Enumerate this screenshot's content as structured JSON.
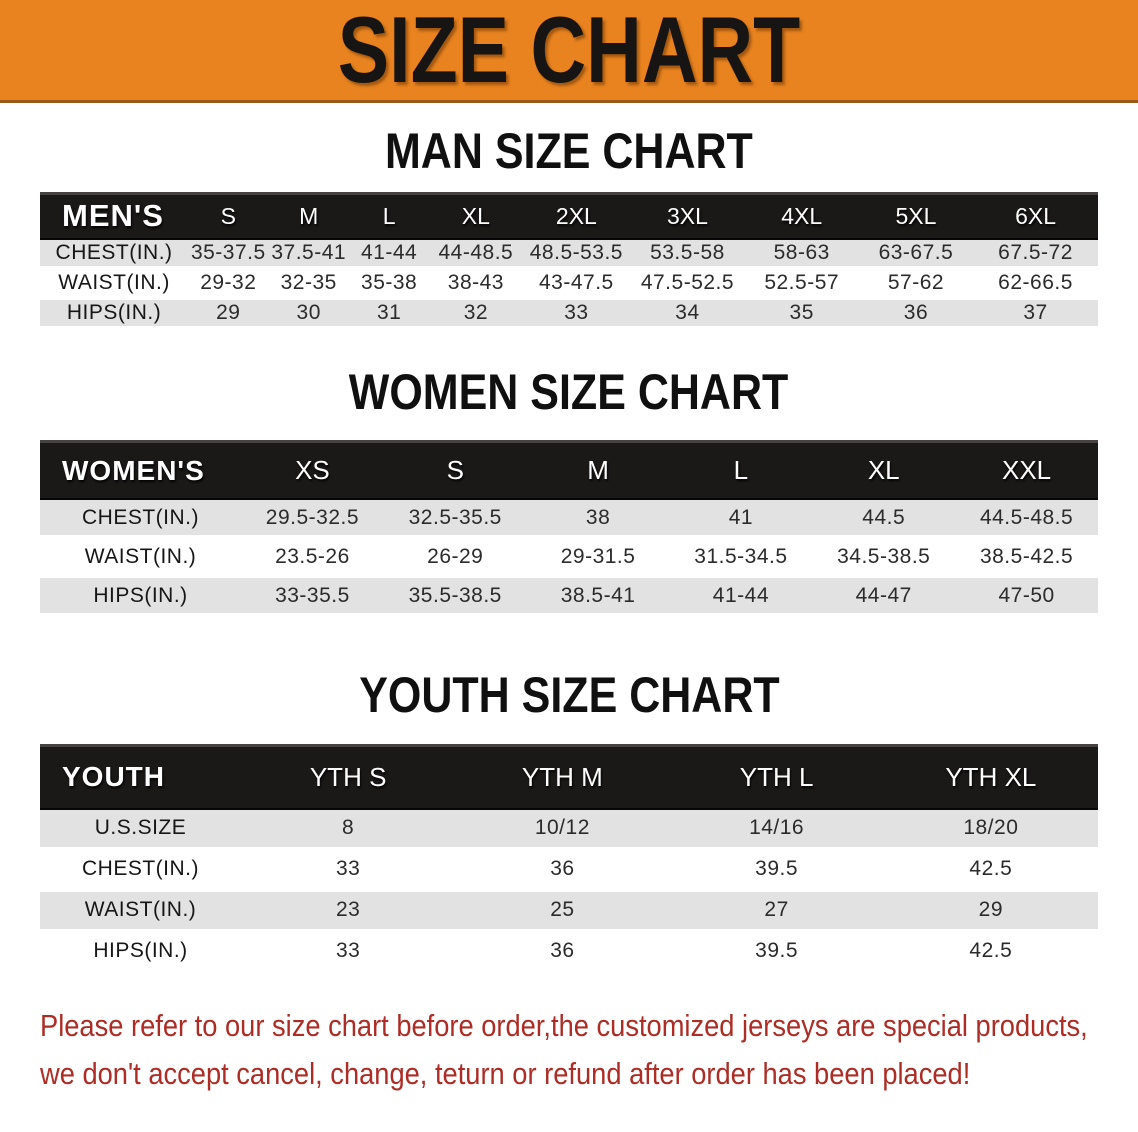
{
  "banner": {
    "title": "SIZE CHART"
  },
  "colors": {
    "banner_bg": "#e8831f",
    "header_bar": "#1b1918",
    "row_shade": "#e2e2e2",
    "note_text": "#ad2d26"
  },
  "sections": [
    {
      "heading": "MAN SIZE CHART",
      "corner": "MEN'S",
      "columns": [
        "S",
        "M",
        "L",
        "XL",
        "2XL",
        "3XL",
        "4XL",
        "5XL",
        "6XL"
      ],
      "rows": [
        {
          "label": "CHEST(IN.)",
          "values": [
            "35-37.5",
            "37.5-41",
            "41-44",
            "44-48.5",
            "48.5-53.5",
            "53.5-58",
            "58-63",
            "63-67.5",
            "67.5-72"
          ]
        },
        {
          "label": "WAIST(IN.)",
          "values": [
            "29-32",
            "32-35",
            "35-38",
            "38-43",
            "43-47.5",
            "47.5-52.5",
            "52.5-57",
            "57-62",
            "62-66.5"
          ]
        },
        {
          "label": "HIPS(IN.)",
          "values": [
            "29",
            "30",
            "31",
            "32",
            "33",
            "34",
            "35",
            "36",
            "37"
          ]
        }
      ]
    },
    {
      "heading": "WOMEN SIZE CHART",
      "corner": "WOMEN'S",
      "columns": [
        "XS",
        "S",
        "M",
        "L",
        "XL",
        "XXL"
      ],
      "rows": [
        {
          "label": "CHEST(IN.)",
          "values": [
            "29.5-32.5",
            "32.5-35.5",
            "38",
            "41",
            "44.5",
            "44.5-48.5"
          ]
        },
        {
          "label": "WAIST(IN.)",
          "values": [
            "23.5-26",
            "26-29",
            "29-31.5",
            "31.5-34.5",
            "34.5-38.5",
            "38.5-42.5"
          ]
        },
        {
          "label": "HIPS(IN.)",
          "values": [
            "33-35.5",
            "35.5-38.5",
            "38.5-41",
            "41-44",
            "44-47",
            "47-50"
          ]
        }
      ]
    },
    {
      "heading": "YOUTH SIZE CHART",
      "corner": "YOUTH",
      "columns": [
        "YTH S",
        "YTH M",
        "YTH L",
        "YTH XL"
      ],
      "rows": [
        {
          "label": "U.S.SIZE",
          "values": [
            "8",
            "10/12",
            "14/16",
            "18/20"
          ]
        },
        {
          "label": "CHEST(IN.)",
          "values": [
            "33",
            "36",
            "39.5",
            "42.5"
          ]
        },
        {
          "label": "WAIST(IN.)",
          "values": [
            "23",
            "25",
            "27",
            "29"
          ]
        },
        {
          "label": "HIPS(IN.)",
          "values": [
            "33",
            "36",
            "39.5",
            "42.5"
          ]
        }
      ]
    }
  ],
  "note": {
    "line1": "Please refer to our size chart before order,the customized jerseys are special products,",
    "line2": "we don't accept cancel, change, teturn or refund after order has been placed!"
  }
}
